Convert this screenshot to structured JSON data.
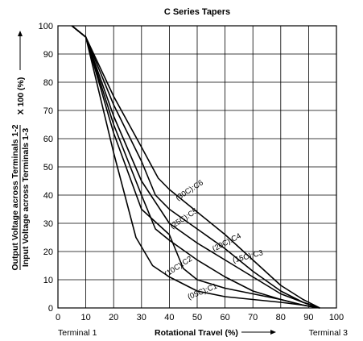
{
  "chart_data": {
    "type": "line",
    "title": "C Series Tapers",
    "xlabel": "Rotational Travel (%)",
    "ylabel_top": "Output Voltage across Terminals 1-2",
    "ylabel_bottom": "Input Voltage across Terminals 1-3",
    "ylabel_factor": "X 100 (%)",
    "x_start_label": "Terminal 1",
    "x_end_label": "Terminal 3",
    "xlim": [
      0,
      100
    ],
    "ylim": [
      0,
      100
    ],
    "xticks": [
      "0",
      "10",
      "20",
      "30",
      "40",
      "50",
      "60",
      "70",
      "80",
      "90",
      "100"
    ],
    "yticks": [
      "0",
      "10",
      "20",
      "30",
      "40",
      "50",
      "60",
      "70",
      "80",
      "90",
      "100"
    ],
    "grid": true,
    "series": [
      {
        "name": "(30C):C6",
        "x": [
          5,
          10,
          20,
          30,
          36,
          40,
          50,
          60,
          70,
          80,
          88,
          94
        ],
        "y": [
          100,
          96,
          75,
          57,
          46,
          42,
          34,
          26,
          17,
          8,
          3,
          0
        ]
      },
      {
        "name": "(25C):C5",
        "x": [
          5,
          10,
          20,
          30,
          35,
          40,
          50,
          60,
          70,
          80,
          88,
          94
        ],
        "y": [
          100,
          96,
          72,
          52,
          40,
          35,
          28,
          21,
          13,
          6,
          2,
          0
        ]
      },
      {
        "name": "(20C):C4",
        "x": [
          5,
          10,
          20,
          30,
          40,
          50,
          60,
          70,
          80,
          88,
          94
        ],
        "y": [
          100,
          96,
          68,
          45,
          30,
          23,
          17,
          11,
          5,
          2,
          0
        ]
      },
      {
        "name": "(15C):C3",
        "x": [
          5,
          10,
          20,
          30,
          35,
          40,
          50,
          60,
          70,
          80,
          88,
          94
        ],
        "y": [
          100,
          96,
          65,
          40,
          28,
          24,
          17,
          11,
          6,
          3,
          1,
          0
        ]
      },
      {
        "name": "(10C):C2",
        "x": [
          5,
          10,
          20,
          30,
          40,
          45,
          50,
          60,
          70,
          80,
          88,
          94
        ],
        "y": [
          100,
          96,
          62,
          35,
          26,
          14,
          10,
          7,
          5,
          3,
          1,
          0
        ]
      },
      {
        "name": "(05C):C1",
        "x": [
          5,
          10,
          20,
          28,
          34,
          40,
          50,
          60,
          70,
          80,
          88,
          94
        ],
        "y": [
          100,
          96,
          55,
          25,
          15,
          11,
          6,
          4,
          3,
          2,
          1,
          0
        ]
      }
    ],
    "labels": [
      {
        "series": "(30C):C6",
        "x": 43,
        "y": 38,
        "angle": -33
      },
      {
        "series": "(25C):C5",
        "x": 41,
        "y": 28,
        "angle": -33
      },
      {
        "series": "(20C):C4",
        "x": 56,
        "y": 20,
        "angle": -27
      },
      {
        "series": "(15C):C3",
        "x": 63,
        "y": 16,
        "angle": -15
      },
      {
        "series": "(10C):C2",
        "x": 39,
        "y": 11,
        "angle": -33
      },
      {
        "series": "(05C):C1",
        "x": 47,
        "y": 3,
        "angle": -22
      }
    ]
  }
}
